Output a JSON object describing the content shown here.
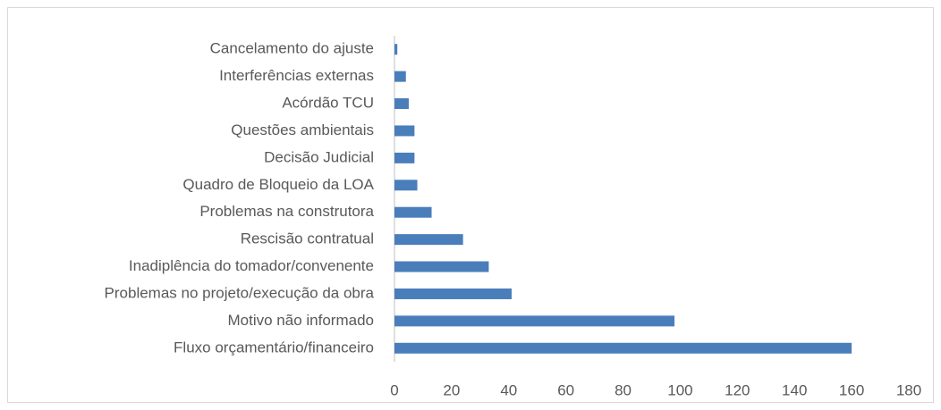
{
  "chart_data": {
    "type": "bar",
    "orientation": "horizontal",
    "categories": [
      "Cancelamento do ajuste",
      "Interferências externas",
      "Acórdão TCU",
      "Questões ambientais",
      "Decisão Judicial",
      "Quadro de Bloqueio da LOA",
      "Problemas na construtora",
      "Rescisão contratual",
      "Inadiplência do tomador/convenente",
      "Problemas no projeto/execução da obra",
      "Motivo não informado",
      "Fluxo orçamentário/financeiro"
    ],
    "values": [
      1,
      4,
      5,
      7,
      7,
      8,
      13,
      24,
      33,
      41,
      98,
      160
    ],
    "color": "#4a7ebb",
    "xlim": [
      0,
      180
    ],
    "xticks": [
      0,
      20,
      40,
      60,
      80,
      100,
      120,
      140,
      160,
      180
    ],
    "grid": false
  }
}
